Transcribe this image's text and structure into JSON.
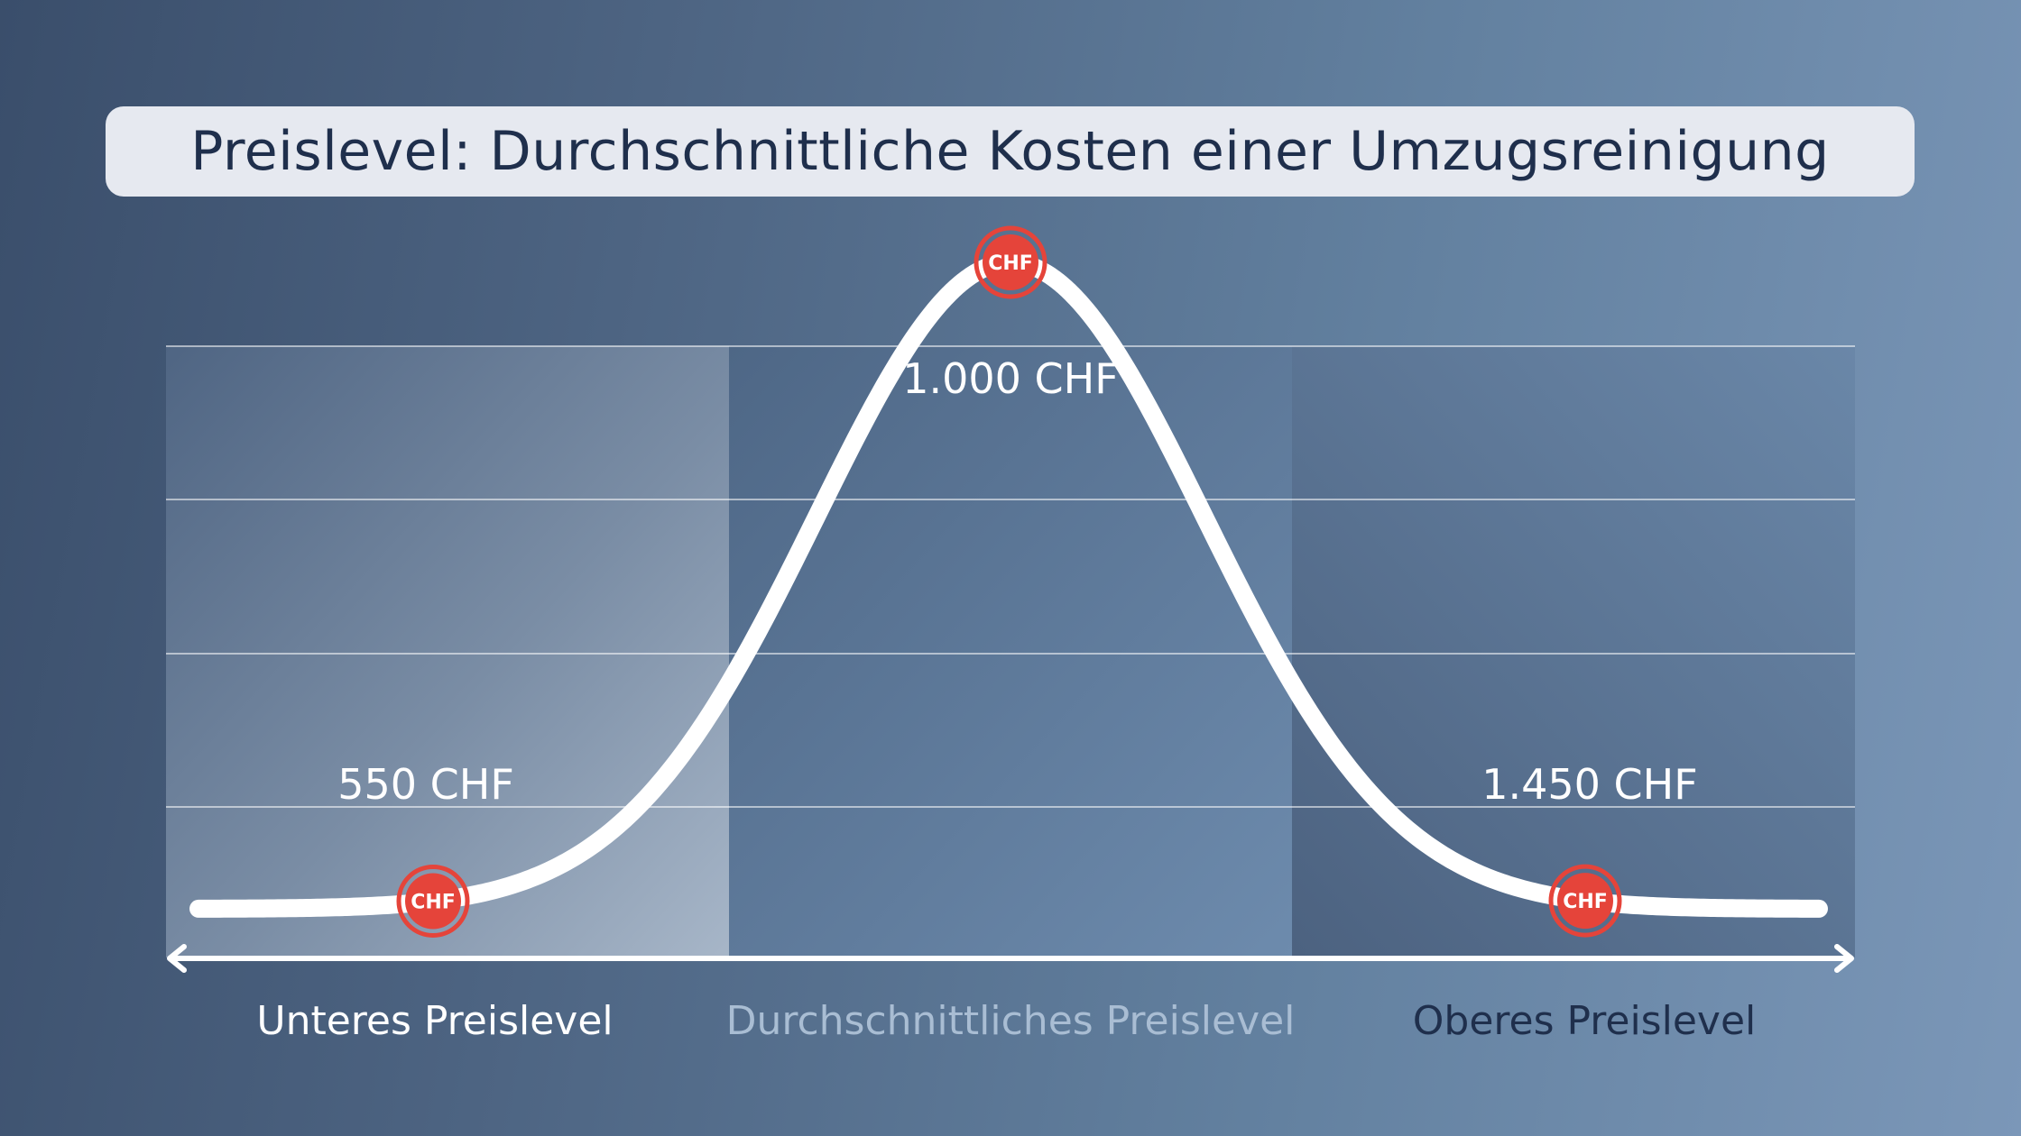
{
  "title": "Preislevel: Durchschnittliche Kosten einer Umzugsreinigung",
  "chart_data": {
    "type": "area",
    "title": "Preislevel: Durchschnittliche Kosten einer Umzugsreinigung",
    "categories": [
      "Unteres Preislevel",
      "Durchschnittliches Preislevel",
      "Oberes Preislevel"
    ],
    "points": [
      {
        "label": "550 CHF",
        "value": 550,
        "coin": "CHF"
      },
      {
        "label": "1.000 CHF",
        "value": 1000,
        "coin": "CHF"
      },
      {
        "label": "1.450 CHF",
        "value": 1450,
        "coin": "CHF"
      }
    ],
    "grid": true,
    "curve": "bell"
  },
  "colors": {
    "curve": "#ffffff",
    "marker": "#e5443a",
    "label_low": "#ffffff",
    "label_mid": "#a9bdd3",
    "label_high": "#1f2f4c",
    "title_text": "#1f2f4c",
    "title_bg": "#e6e9f0"
  }
}
